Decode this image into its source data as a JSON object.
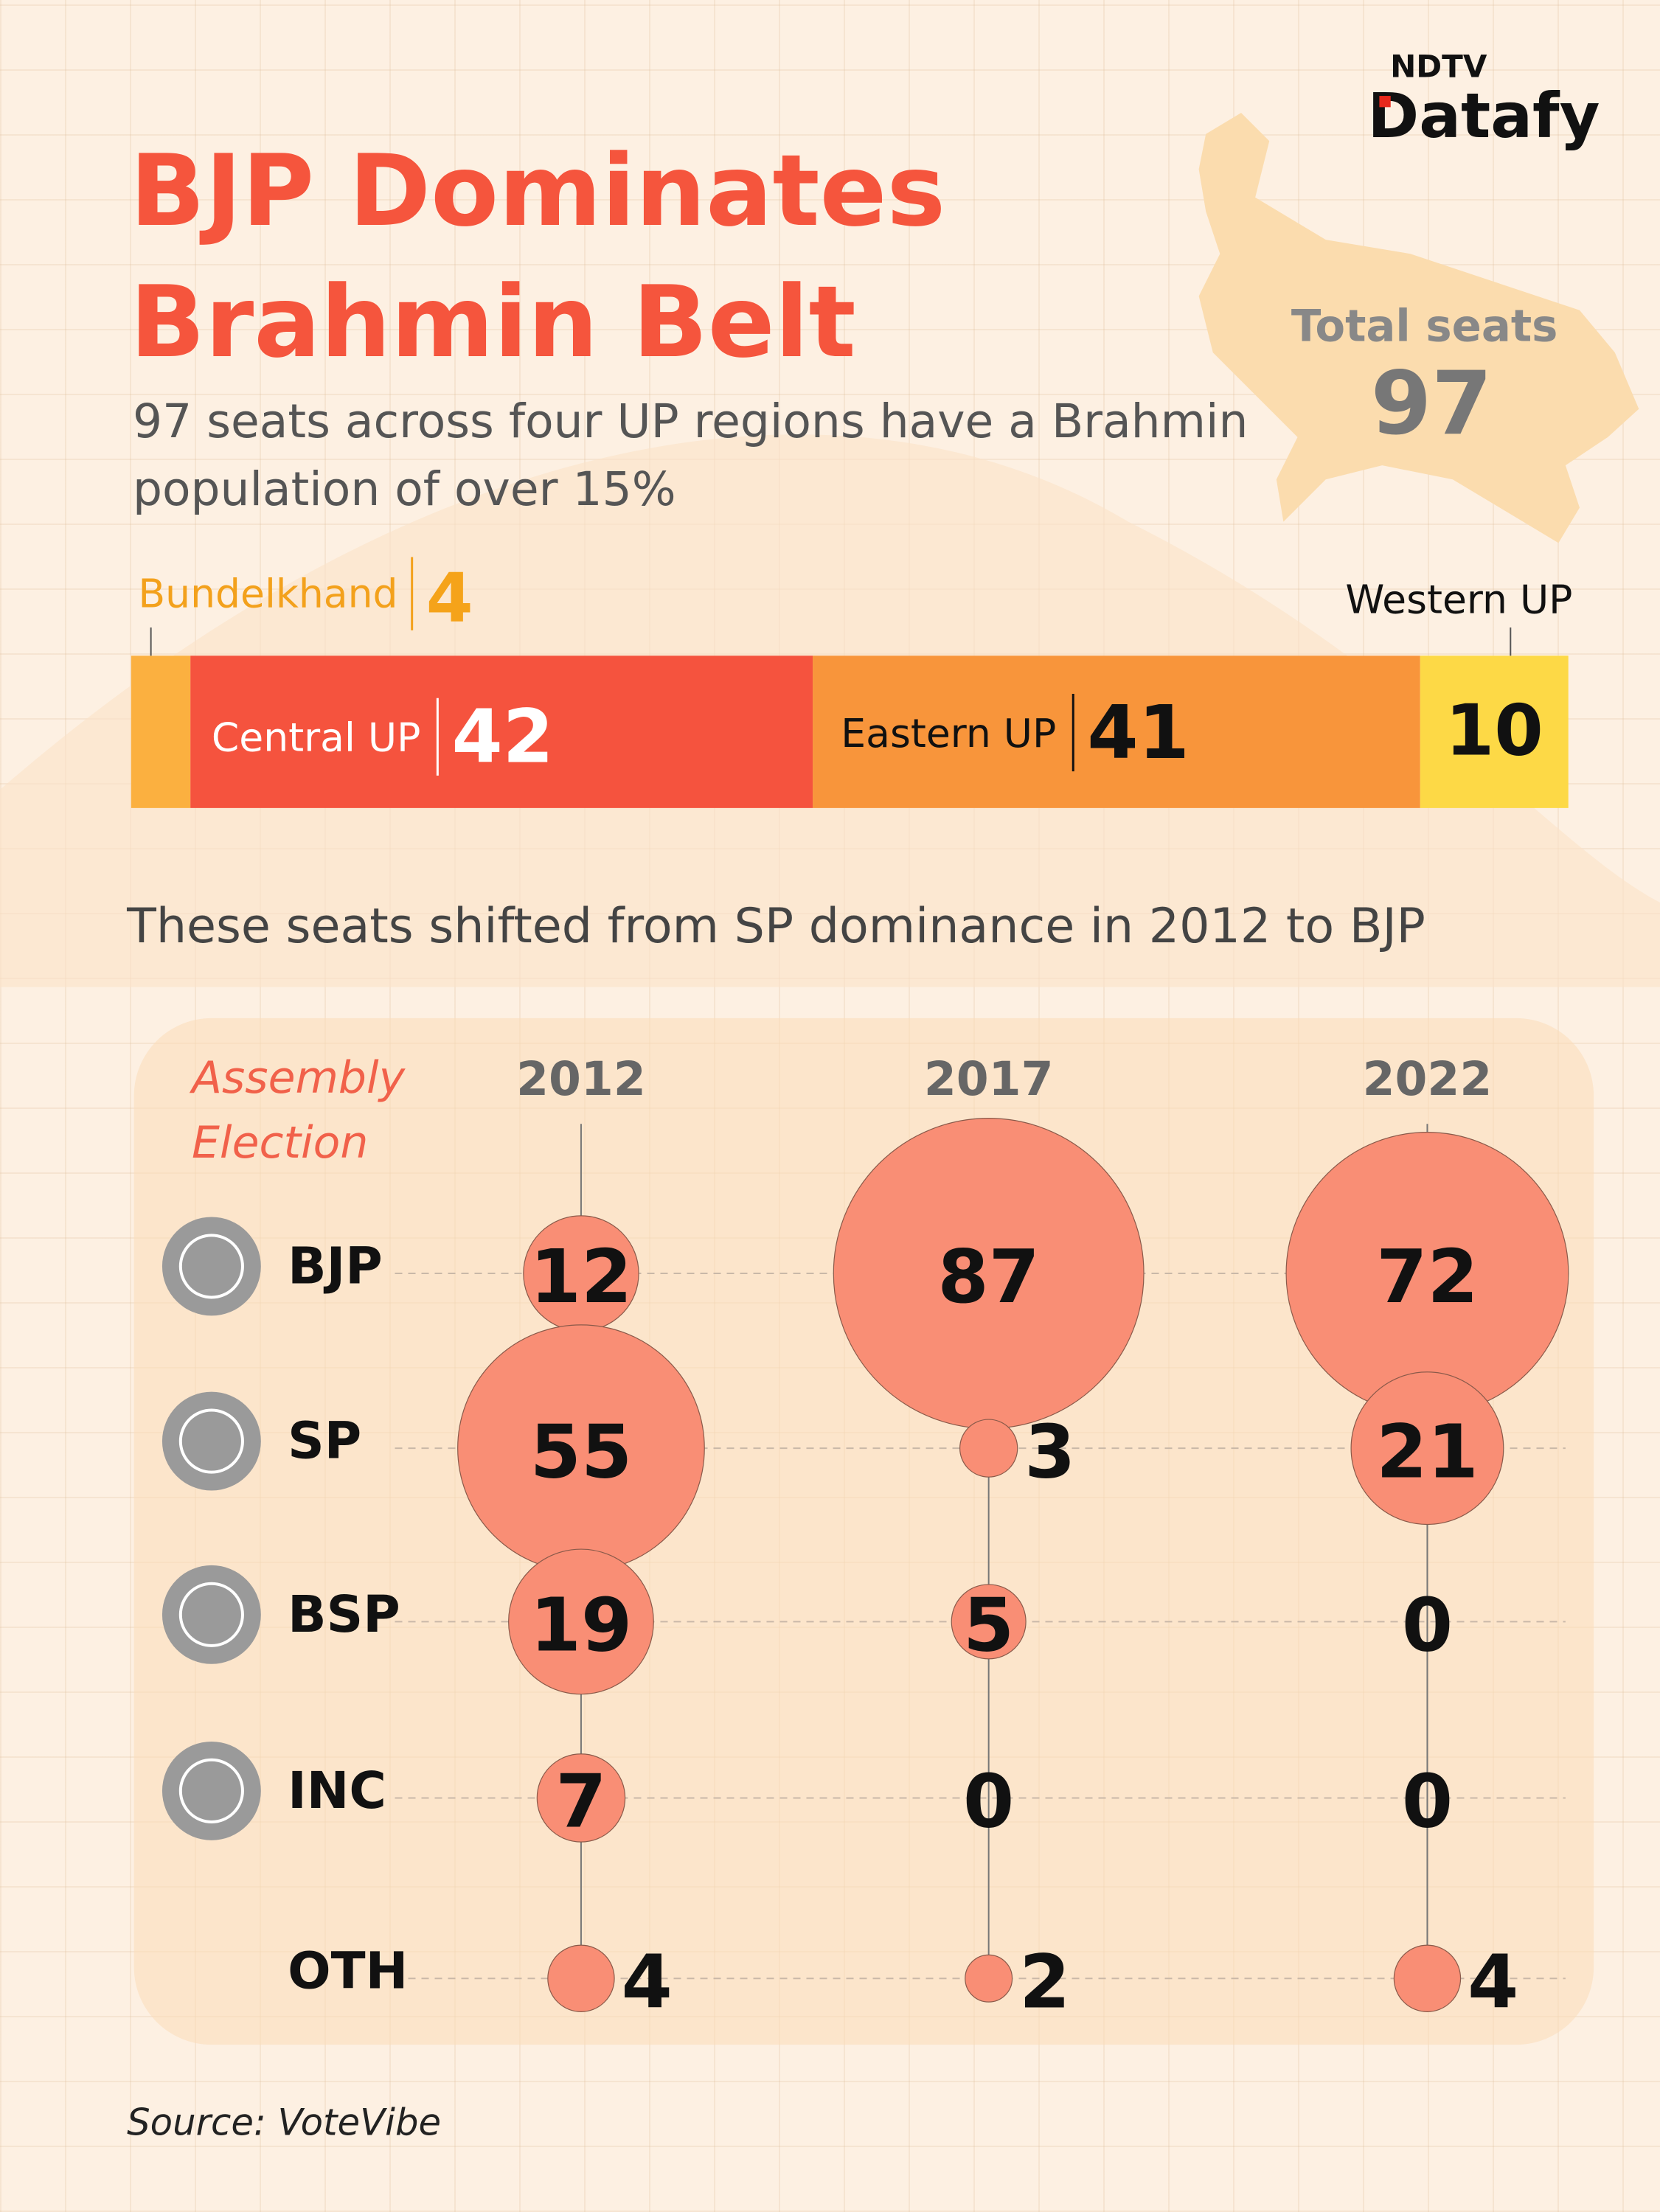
{
  "brand": {
    "top": "NDTV",
    "bottom": "Datafy"
  },
  "chart_data": [
    {
      "type": "stacked-bar",
      "title": "BJP Dominates Brahmin Belt",
      "subtitle": "97 seats across four UP regions have a Brahmin population of over 15%",
      "total_label": "Total seats",
      "total": 97,
      "categories": [
        "Bundelkhand",
        "Central UP",
        "Eastern UP",
        "Western UP"
      ],
      "values": [
        4,
        42,
        41,
        10
      ],
      "colors": [
        "#fbb040",
        "#f5533e",
        "#f8953b",
        "#fdd946"
      ]
    },
    {
      "type": "bubble-matrix",
      "title": "These seats shifted from SP dominance in 2012 to BJP",
      "corner_label": "Assembly Election",
      "categories": [
        "2012",
        "2017",
        "2022"
      ],
      "color": "#f98e75",
      "series": [
        {
          "name": "BJP",
          "values": [
            12,
            87,
            72
          ]
        },
        {
          "name": "SP",
          "values": [
            55,
            3,
            21
          ]
        },
        {
          "name": "BSP",
          "values": [
            19,
            5,
            0
          ]
        },
        {
          "name": "INC",
          "values": [
            7,
            0,
            0
          ]
        },
        {
          "name": "OTH",
          "values": [
            4,
            2,
            4
          ]
        }
      ]
    }
  ],
  "source": "Source: VoteVibe"
}
